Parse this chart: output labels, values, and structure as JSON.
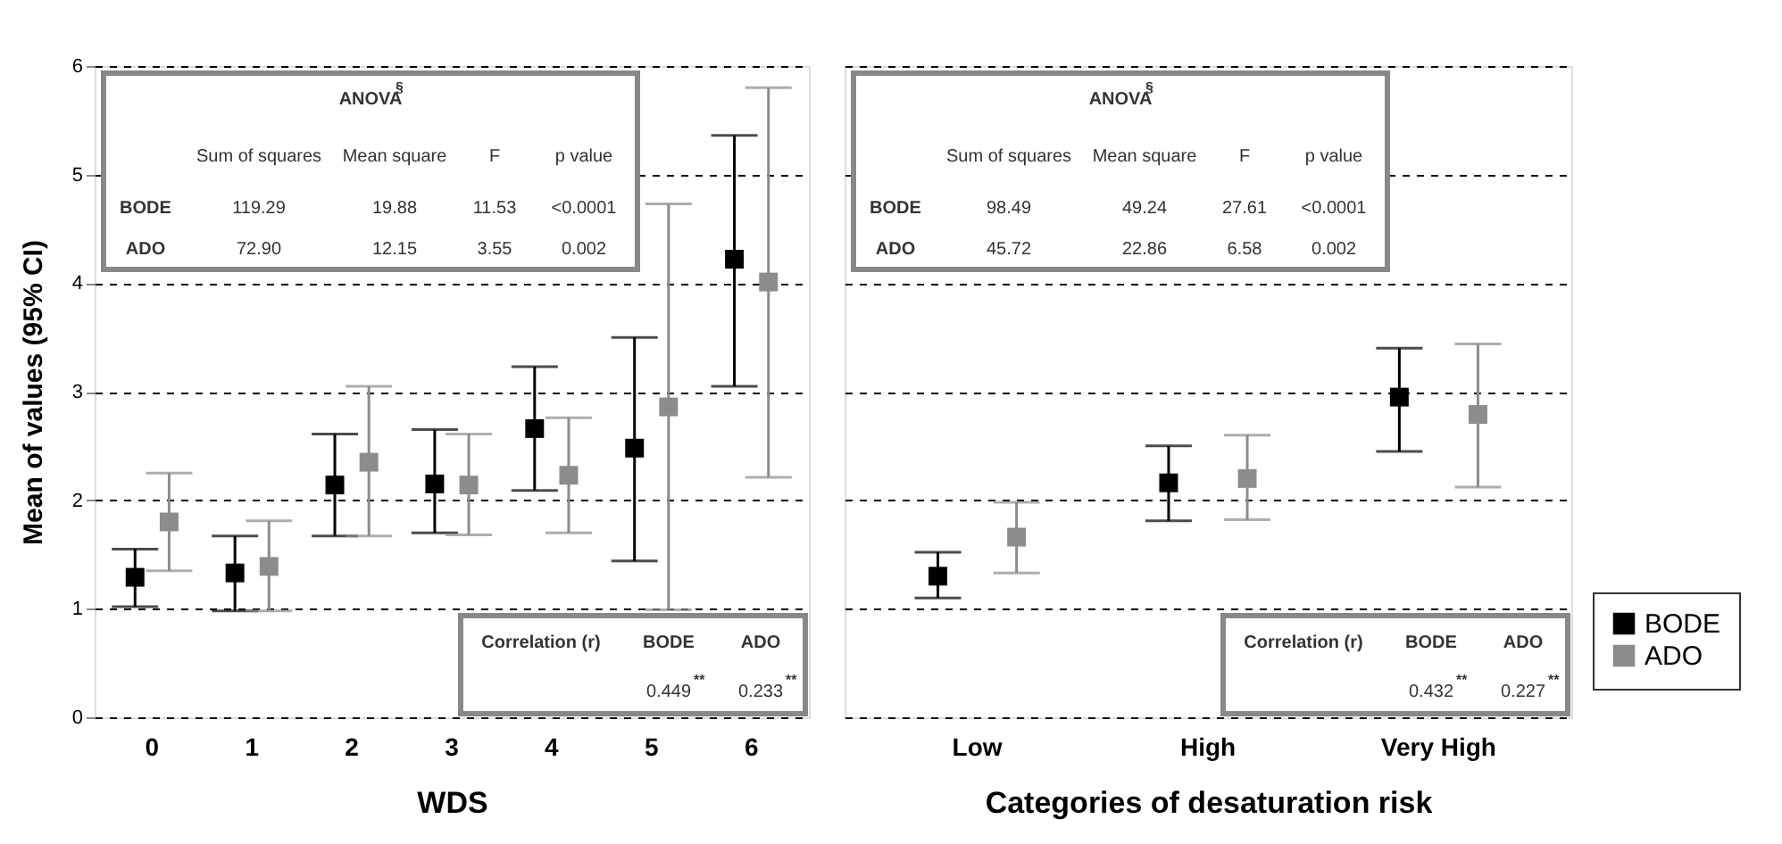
{
  "chart_data": [
    {
      "type": "scatter",
      "xlabel": "WDS",
      "ylabel": "Mean of values  (95% CI)",
      "categories": [
        "0",
        "1",
        "2",
        "3",
        "4",
        "5",
        "6"
      ],
      "ylim": [
        0,
        6
      ],
      "yticks": [
        0,
        1,
        2,
        3,
        4,
        5,
        6
      ],
      "grid": "y",
      "line_style": "dashed",
      "marker": "square",
      "legend": false,
      "series": [
        {
          "color": "#000000",
          "values": [
            1.29,
            1.33,
            2.14,
            2.15,
            2.66,
            2.48,
            4.22
          ],
          "errors": [
            [
              1.02,
              1.55
            ],
            [
              0.98,
              1.67
            ],
            [
              1.67,
              2.61
            ],
            [
              1.7,
              2.65
            ],
            [
              2.09,
              3.23
            ],
            [
              1.44,
              3.5
            ],
            [
              3.05,
              5.36
            ]
          ]
        },
        {
          "color": "#8c8c8c",
          "values": [
            1.8,
            1.39,
            2.35,
            2.14,
            2.23,
            2.86,
            4.01
          ],
          "errors": [
            [
              1.35,
              2.25
            ],
            [
              0.98,
              1.81
            ],
            [
              1.67,
              3.05
            ],
            [
              1.68,
              2.61
            ],
            [
              1.7,
              2.76
            ],
            [
              0.99,
              4.73
            ],
            [
              2.21,
              5.8
            ]
          ]
        }
      ],
      "annotations": [
        "ANOVA$^{§}$",
        "Sum of squares",
        "Mean square",
        "F",
        "p value",
        "BODE",
        "119.29",
        "19.88",
        "11.53",
        "<0.0001",
        "ADO",
        "72.90",
        "12.15",
        "3.55",
        "0.002",
        "Correlation (r)",
        "BODE",
        "ADO",
        "0.449$^{**}$",
        "0.233$^{**}$"
      ]
    },
    {
      "type": "scatter",
      "xlabel": "Categories of desaturation risk",
      "categories": [
        "Low",
        "High",
        "Very High"
      ],
      "ylim": [
        0,
        6
      ],
      "yticks": [
        0,
        1,
        2,
        3,
        4,
        5,
        6
      ],
      "grid": "y",
      "line_style": "dashed",
      "marker": "square",
      "tick_labels": "x",
      "legend": "bottom right",
      "series": [
        {
          "name": "BODE",
          "color": "#000000",
          "values": [
            1.3,
            2.16,
            2.95
          ],
          "errors": [
            [
              1.1,
              1.52
            ],
            [
              1.81,
              2.5
            ],
            [
              2.45,
              3.4
            ]
          ]
        },
        {
          "name": "ADO",
          "color": "#8c8c8c",
          "values": [
            1.66,
            2.2,
            2.79
          ],
          "errors": [
            [
              1.33,
              1.98
            ],
            [
              1.82,
              2.6
            ],
            [
              2.12,
              3.44
            ]
          ]
        }
      ],
      "annotations": [
        "ANOVA$^{§}$",
        "Sum of squares",
        "Mean square",
        "F",
        "p value",
        "BODE",
        "98.49",
        "49.24",
        "27.61",
        "<0.0001",
        "ADO",
        "45.72",
        "22.86",
        "6.58",
        "0.002",
        "Correlation (r)",
        "BODE",
        "ADO",
        "0.432$^{**}$",
        "0.227$^{**}$"
      ]
    }
  ]
}
